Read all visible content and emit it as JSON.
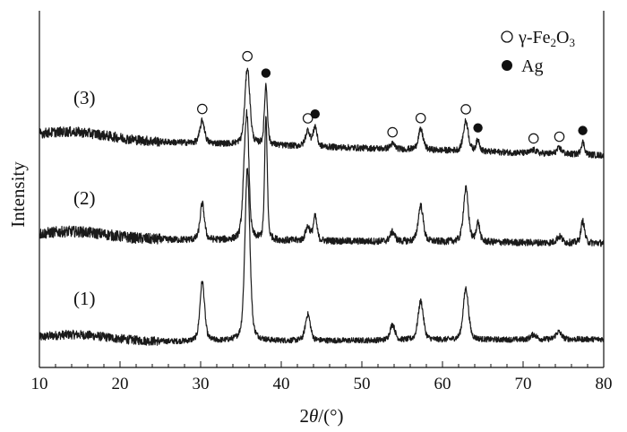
{
  "chart_data": {
    "type": "line",
    "xlabel_parts": {
      "pre": "2",
      "italic": "θ",
      "post": "/(°)"
    },
    "ylabel": "Intensity",
    "xlim": [
      10,
      80
    ],
    "xticks": [
      "10",
      "20",
      "30",
      "40",
      "50",
      "60",
      "70",
      "80"
    ],
    "yticks_shown": false,
    "grid": false,
    "legend": {
      "placement": "top-right",
      "items": [
        {
          "marker": "open-circle",
          "label_parts": [
            "γ-Fe",
            "2",
            "O",
            "3"
          ]
        },
        {
          "marker": "filled-circle",
          "label": "Ag"
        }
      ]
    },
    "series": [
      {
        "name": "(1)",
        "baseline": 0.0,
        "baseline_end": 0.05,
        "noise": 0.045,
        "peaks": [
          {
            "x": 30.2,
            "h": 0.95,
            "w": 0.28
          },
          {
            "x": 35.8,
            "h": 2.75,
            "w": 0.3
          },
          {
            "x": 43.3,
            "h": 0.42,
            "w": 0.3
          },
          {
            "x": 53.8,
            "h": 0.25,
            "w": 0.3
          },
          {
            "x": 57.3,
            "h": 0.62,
            "w": 0.32
          },
          {
            "x": 62.9,
            "h": 0.82,
            "w": 0.32
          },
          {
            "x": 71.3,
            "h": 0.08,
            "w": 0.35
          },
          {
            "x": 74.4,
            "h": 0.12,
            "w": 0.35
          }
        ]
      },
      {
        "name": "(2)",
        "baseline": 1.65,
        "baseline_end": 1.58,
        "noise": 0.055,
        "peaks": [
          {
            "x": 30.2,
            "h": 0.58,
            "w": 0.26
          },
          {
            "x": 35.5,
            "h": 1.05,
            "w": 0.28
          },
          {
            "x": 35.8,
            "h": 1.35,
            "w": 0.22
          },
          {
            "x": 38.1,
            "h": 1.95,
            "w": 0.16
          },
          {
            "x": 43.3,
            "h": 0.22,
            "w": 0.28
          },
          {
            "x": 44.2,
            "h": 0.38,
            "w": 0.22
          },
          {
            "x": 53.8,
            "h": 0.15,
            "w": 0.3
          },
          {
            "x": 57.3,
            "h": 0.58,
            "w": 0.3
          },
          {
            "x": 62.9,
            "h": 0.85,
            "w": 0.3
          },
          {
            "x": 64.4,
            "h": 0.3,
            "w": 0.22
          },
          {
            "x": 74.5,
            "h": 0.1,
            "w": 0.33
          },
          {
            "x": 77.4,
            "h": 0.35,
            "w": 0.22
          }
        ]
      },
      {
        "name": "(3)",
        "baseline": 3.25,
        "baseline_end": 2.98,
        "noise": 0.05,
        "peaks": [
          {
            "x": 30.2,
            "h": 0.36,
            "w": 0.28
          },
          {
            "x": 35.8,
            "h": 1.22,
            "w": 0.3
          },
          {
            "x": 38.1,
            "h": 0.95,
            "w": 0.18
          },
          {
            "x": 43.3,
            "h": 0.25,
            "w": 0.28
          },
          {
            "x": 44.2,
            "h": 0.32,
            "w": 0.22
          },
          {
            "x": 53.8,
            "h": 0.08,
            "w": 0.3
          },
          {
            "x": 57.3,
            "h": 0.32,
            "w": 0.3
          },
          {
            "x": 62.9,
            "h": 0.48,
            "w": 0.3
          },
          {
            "x": 64.4,
            "h": 0.18,
            "w": 0.22
          },
          {
            "x": 71.3,
            "h": 0.05,
            "w": 0.33
          },
          {
            "x": 74.5,
            "h": 0.09,
            "w": 0.33
          },
          {
            "x": 77.4,
            "h": 0.2,
            "w": 0.22
          }
        ]
      }
    ],
    "markers": [
      {
        "x": 30.2,
        "phase": "γ-Fe2O3",
        "style": "open-circle"
      },
      {
        "x": 35.8,
        "phase": "γ-Fe2O3",
        "style": "open-circle"
      },
      {
        "x": 38.1,
        "phase": "Ag",
        "style": "filled-circle"
      },
      {
        "x": 43.3,
        "phase": "γ-Fe2O3",
        "style": "open-circle"
      },
      {
        "x": 44.2,
        "phase": "Ag",
        "style": "filled-circle"
      },
      {
        "x": 53.8,
        "phase": "γ-Fe2O3",
        "style": "open-circle"
      },
      {
        "x": 57.3,
        "phase": "γ-Fe2O3",
        "style": "open-circle"
      },
      {
        "x": 62.9,
        "phase": "γ-Fe2O3",
        "style": "open-circle"
      },
      {
        "x": 64.4,
        "phase": "Ag",
        "style": "filled-circle"
      },
      {
        "x": 71.3,
        "phase": "γ-Fe2O3",
        "style": "open-circle"
      },
      {
        "x": 74.5,
        "phase": "γ-Fe2O3",
        "style": "open-circle"
      },
      {
        "x": 77.4,
        "phase": "Ag",
        "style": "filled-circle"
      }
    ],
    "line_color": "#1a1a1a"
  }
}
